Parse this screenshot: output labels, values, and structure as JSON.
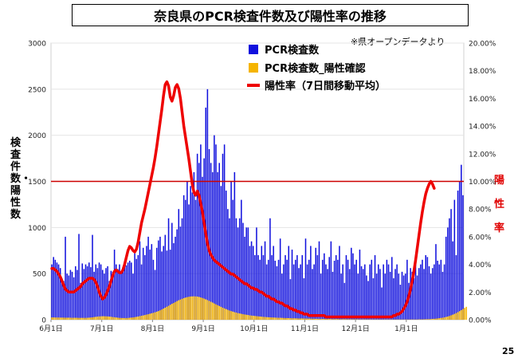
{
  "title": "奈良県のPCR検査件数及び陽性率の推移",
  "note": "※県オープンデータより",
  "page_number": "25",
  "chart_data": {
    "type": "bar",
    "title": "奈良県のPCR検査件数及び陽性率の推移",
    "ylabel": "検査件数・陽性数",
    "y2label": "陽性率",
    "ylim": [
      0,
      3000
    ],
    "y2lim": [
      0,
      20
    ],
    "yticks": [
      "0",
      "500",
      "1000",
      "1500",
      "2000",
      "2500",
      "3000"
    ],
    "y2ticks": [
      "0.00%",
      "2.00%",
      "4.00%",
      "6.00%",
      "8.00%",
      "10.00%",
      "12.00%",
      "14.00%",
      "16.00%",
      "18.00%",
      "20.00%"
    ],
    "xticks": [
      "6月1日",
      "7月1日",
      "8月1日",
      "9月1日",
      "10月1日",
      "11月1日",
      "12月1日",
      "1月1日"
    ],
    "legend": [
      "PCR検査数",
      "PCR検査数_陽性確認",
      "陽性率（7日間移動平均）"
    ],
    "legend_position": "top-center",
    "reference_line": 10,
    "colors": {
      "tests": "#1010dd",
      "positives": "#f5b400",
      "rate": "#ee0000",
      "reference": "#cc0000"
    },
    "series": [
      {
        "name": "PCR検査数",
        "kind": "bar",
        "values": [
          600,
          680,
          650,
          620,
          600,
          560,
          450,
          420,
          900,
          500,
          480,
          540,
          520,
          460,
          580,
          540,
          930,
          400,
          610,
          550,
          600,
          580,
          620,
          570,
          920,
          520,
          600,
          560,
          620,
          600,
          540,
          500,
          560,
          580,
          420,
          530,
          520,
          760,
          600,
          550,
          600,
          520,
          570,
          630,
          590,
          620,
          640,
          620,
          500,
          720,
          660,
          700,
          850,
          600,
          780,
          700,
          800,
          900,
          760,
          820,
          650,
          540,
          780,
          860,
          900,
          740,
          800,
          920,
          750,
          1100,
          760,
          1050,
          830,
          900,
          980,
          1200,
          1010,
          1100,
          1350,
          1300,
          1500,
          1250,
          1450,
          1380,
          1600,
          1300,
          1800,
          1700,
          1900,
          1550,
          1750,
          2300,
          2500,
          1850,
          1700,
          1600,
          2000,
          1900,
          1600,
          1700,
          1450,
          1800,
          1900,
          1400,
          1200,
          1100,
          1500,
          1300,
          1600,
          1100,
          1000,
          1100,
          1300,
          1050,
          900,
          1000,
          1000,
          800,
          850,
          800,
          700,
          1000,
          700,
          650,
          800,
          700,
          850,
          600,
          650,
          1100,
          700,
          800,
          640,
          580,
          650,
          880,
          500,
          600,
          700,
          650,
          800,
          440,
          760,
          600,
          650,
          700,
          560,
          600,
          700,
          450,
          880,
          600,
          650,
          800,
          550,
          600,
          780,
          700,
          850,
          500,
          650,
          720,
          600,
          550,
          680,
          850,
          520,
          640,
          700,
          650,
          800,
          500,
          600,
          400,
          700,
          650,
          550,
          780,
          720,
          600,
          650,
          500,
          760,
          580,
          550,
          600,
          480,
          420,
          600,
          650,
          450,
          700,
          500,
          600,
          550,
          350,
          600,
          500,
          650,
          600,
          520,
          680,
          450,
          550,
          600,
          500,
          380,
          520,
          480,
          500,
          650,
          400,
          560,
          520,
          450,
          700,
          480,
          560,
          600,
          650,
          550,
          700,
          680,
          580,
          500,
          560,
          600,
          820,
          640,
          600,
          650,
          520,
          600,
          900,
          1000,
          1100,
          1200,
          850,
          1300,
          700,
          1400,
          1500,
          1680,
          1350
        ]
      },
      {
        "name": "PCR検査数_陽性確認",
        "kind": "bar",
        "values": [
          25,
          25,
          24,
          24,
          24,
          23,
          23,
          23,
          22,
          22,
          22,
          22,
          21,
          21,
          21,
          21,
          20,
          20,
          20,
          20,
          20,
          21,
          22,
          24,
          26,
          29,
          31,
          34,
          36,
          37,
          38,
          38,
          37,
          36,
          34,
          32,
          29,
          27,
          24,
          22,
          20,
          19,
          18,
          18,
          18,
          19,
          21,
          23,
          25,
          28,
          31,
          35,
          39,
          43,
          47,
          51,
          56,
          60,
          65,
          70,
          75,
          81,
          87,
          94,
          102,
          111,
          121,
          131,
          141,
          151,
          162,
          172,
          182,
          192,
          202,
          211,
          219,
          227,
          234,
          240,
          245,
          249,
          252,
          253,
          254,
          253,
          251,
          247,
          242,
          236,
          229,
          221,
          213,
          204,
          195,
          186,
          176,
          167,
          158,
          149,
          140,
          131,
          123,
          115,
          107,
          100,
          94,
          88,
          82,
          77,
          72,
          68,
          64,
          60,
          57,
          54,
          51,
          48,
          45,
          43,
          41,
          39,
          37,
          35,
          33,
          31,
          30,
          28,
          27,
          26,
          25,
          24,
          23,
          22,
          21,
          21,
          20,
          19,
          18,
          18,
          17,
          17,
          16,
          16,
          15,
          15,
          14,
          14,
          14,
          13,
          13,
          12,
          12,
          12,
          11,
          11,
          10,
          10,
          10,
          9,
          9,
          9,
          8,
          8,
          8,
          8,
          7,
          7,
          7,
          7,
          6,
          6,
          6,
          6,
          6,
          5,
          5,
          5,
          5,
          5,
          5,
          4,
          4,
          4,
          4,
          4,
          4,
          4,
          4,
          3,
          3,
          3,
          3,
          3,
          3,
          3,
          3,
          3,
          3,
          3,
          3,
          3,
          3,
          3,
          3,
          3,
          3,
          3,
          3,
          3,
          3,
          3,
          3,
          3,
          3,
          3,
          3,
          4,
          4,
          4,
          5,
          5,
          6,
          7,
          8,
          9,
          10,
          12,
          14,
          16,
          19,
          22,
          26,
          30,
          35,
          41,
          48,
          55,
          63,
          72,
          82,
          93,
          104,
          116,
          128,
          140
        ]
      },
      {
        "name": "陽性率（7日間移動平均）",
        "kind": "line",
        "values": [
          3.7,
          3.7,
          3.6,
          3.5,
          3.3,
          3.1,
          2.8,
          2.5,
          2.2,
          2.1,
          2.0,
          2.0,
          2.0,
          2.0,
          2.1,
          2.2,
          2.3,
          2.4,
          2.6,
          2.7,
          2.8,
          2.9,
          3.0,
          3.0,
          3.0,
          2.9,
          2.7,
          2.4,
          2.0,
          1.7,
          1.5,
          1.6,
          1.8,
          2.1,
          2.4,
          2.8,
          3.2,
          3.5,
          3.6,
          3.5,
          3.4,
          3.4,
          3.6,
          4.0,
          4.5,
          5.0,
          5.3,
          5.2,
          5.0,
          4.9,
          5.1,
          5.6,
          6.3,
          7.0,
          7.5,
          8.0,
          8.6,
          9.2,
          9.8,
          10.4,
          11.0,
          11.7,
          12.5,
          13.4,
          14.3,
          15.2,
          16.2,
          17.0,
          17.2,
          16.9,
          16.1,
          15.8,
          16.2,
          16.8,
          17.0,
          16.7,
          16.0,
          15.0,
          14.0,
          13.2,
          12.4,
          11.6,
          10.7,
          9.8,
          9.2,
          9.0,
          9.3,
          9.0,
          8.4,
          7.8,
          7.0,
          6.2,
          5.5,
          5.0,
          4.7,
          4.5,
          4.3,
          4.2,
          4.1,
          4.0,
          3.9,
          3.8,
          3.7,
          3.6,
          3.5,
          3.4,
          3.3,
          3.3,
          3.2,
          3.1,
          3.0,
          2.9,
          2.8,
          2.7,
          2.6,
          2.6,
          2.5,
          2.4,
          2.3,
          2.3,
          2.2,
          2.2,
          2.1,
          2.0,
          2.0,
          1.9,
          1.8,
          1.7,
          1.7,
          1.6,
          1.5,
          1.5,
          1.4,
          1.3,
          1.3,
          1.2,
          1.2,
          1.1,
          1.0,
          1.0,
          0.9,
          0.8,
          0.8,
          0.7,
          0.7,
          0.6,
          0.6,
          0.5,
          0.5,
          0.4,
          0.4,
          0.4,
          0.3,
          0.3,
          0.3,
          0.3,
          0.3,
          0.3,
          0.3,
          0.3,
          0.3,
          0.3,
          0.2,
          0.2,
          0.2,
          0.2,
          0.2,
          0.2,
          0.2,
          0.2,
          0.2,
          0.2,
          0.2,
          0.2,
          0.2,
          0.2,
          0.2,
          0.2,
          0.2,
          0.2,
          0.2,
          0.2,
          0.2,
          0.2,
          0.2,
          0.2,
          0.2,
          0.2,
          0.2,
          0.2,
          0.2,
          0.2,
          0.2,
          0.2,
          0.2,
          0.2,
          0.2,
          0.2,
          0.2,
          0.2,
          0.2,
          0.2,
          0.3,
          0.3,
          0.4,
          0.4,
          0.5,
          0.6,
          0.8,
          1.0,
          1.3,
          1.7,
          2.2,
          2.8,
          3.5,
          4.3,
          5.2,
          6.1,
          7.0,
          7.8,
          8.5,
          9.1,
          9.5,
          9.8,
          10.0,
          9.8,
          9.5
        ]
      }
    ]
  }
}
